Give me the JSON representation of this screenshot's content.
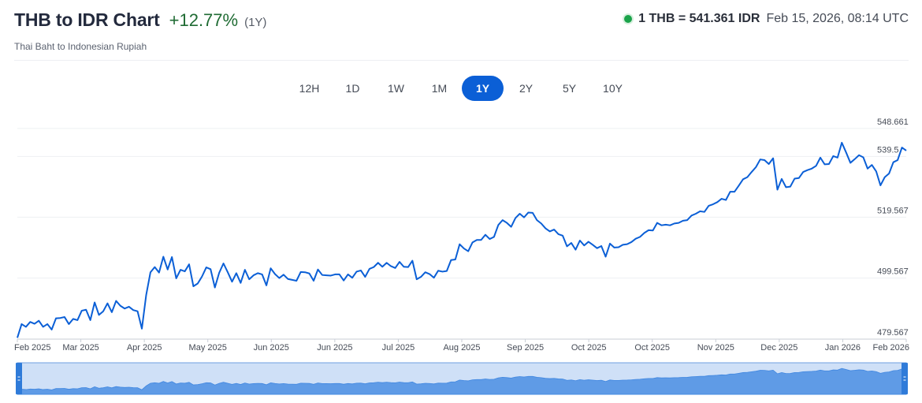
{
  "header": {
    "title": "THB to IDR Chart",
    "change": "+12.77%",
    "period": "(1Y)",
    "subtitle": "Thai Baht to Indonesian Rupiah",
    "rate": "1 THB = 541.361 IDR",
    "timestamp": "Feb 15, 2026, 08:14 UTC"
  },
  "tabs": [
    {
      "label": "12H",
      "active": false
    },
    {
      "label": "1D",
      "active": false
    },
    {
      "label": "1W",
      "active": false
    },
    {
      "label": "1M",
      "active": false
    },
    {
      "label": "1Y",
      "active": true
    },
    {
      "label": "2Y",
      "active": false
    },
    {
      "label": "5Y",
      "active": false
    },
    {
      "label": "10Y",
      "active": false
    }
  ],
  "colors": {
    "line": "#0b5fd6",
    "active_tab": "#0b5fd6",
    "positive": "#1f6b33",
    "navigator_fill": "#5f9be6",
    "navigator_bg": "#cfe0f7",
    "live_dot": "#1aa34a"
  },
  "chart_data": {
    "type": "line",
    "title": "THB to IDR Chart",
    "xlabel": "",
    "ylabel": "",
    "x_ticks": [
      "Feb 2025",
      "Mar 2025",
      "Apr 2025",
      "May 2025",
      "Jun 2025",
      "Jun 2025",
      "Jul 2025",
      "Aug 2025",
      "Sep 2025",
      "Oct 2025",
      "Oct 2025",
      "Nov 2025",
      "Dec 2025",
      "Jan 2026",
      "Feb 2026"
    ],
    "y_ticks": [
      "548.661",
      "539.5",
      "519.567",
      "499.567",
      "479.567"
    ],
    "y_tick_values": [
      548.661,
      539.5,
      519.567,
      499.567,
      479.567
    ],
    "ylim": [
      479.567,
      552
    ],
    "grid": true,
    "legend": "none",
    "series": [
      {
        "values": [
          480.0,
          484.5,
          483.6,
          485.2,
          484.6,
          485.6,
          483.6,
          484.5,
          482.7,
          486.4,
          486.5,
          486.8,
          484.5,
          486.2,
          485.8,
          488.9,
          489.2,
          485.8,
          491.6,
          487.5,
          488.7,
          491.3,
          488.4,
          492.1,
          490.5,
          489.6,
          490.2,
          489.1,
          488.7,
          483.0,
          494.0,
          501.5,
          503.2,
          501.4,
          506.6,
          502.4,
          506.5,
          499.5,
          502.3,
          501.8,
          504.1,
          496.9,
          497.8,
          500.1,
          503.1,
          502.5,
          496.5,
          501.3,
          504.4,
          501.5,
          498.4,
          501.2,
          498.0,
          502.3,
          499.2,
          500.5,
          501.2,
          500.8,
          497.2,
          502.8,
          500.9,
          499.6,
          500.7,
          499.3,
          499.0,
          498.7,
          501.6,
          501.5,
          501.1,
          498.7,
          502.4,
          500.6,
          500.5,
          500.4,
          500.8,
          500.8,
          498.8,
          500.8,
          499.7,
          501.7,
          502.1,
          500.0,
          502.6,
          503.2,
          504.6,
          503.3,
          504.6,
          503.5,
          502.9,
          504.9,
          503.3,
          503.2,
          505.3,
          499.2,
          500.0,
          501.5,
          500.9,
          499.7,
          502.0,
          501.7,
          501.9,
          505.5,
          505.7,
          510.7,
          509.3,
          508.4,
          511.3,
          512.1,
          512.1,
          513.8,
          512.4,
          513.1,
          517.0,
          518.6,
          517.7,
          516.4,
          519.3,
          520.7,
          519.5,
          521.1,
          521.0,
          518.6,
          517.5,
          515.9,
          514.9,
          515.5,
          514.0,
          513.5,
          510.0,
          511.1,
          508.9,
          511.9,
          510.3,
          511.5,
          510.5,
          509.4,
          510.1,
          506.6,
          510.9,
          509.6,
          509.7,
          510.5,
          510.7,
          511.4,
          512.5,
          513.1,
          514.4,
          515.3,
          515.2,
          517.7,
          516.9,
          517.1,
          516.9,
          517.5,
          517.7,
          518.4,
          518.6,
          520.1,
          520.7,
          521.5,
          521.3,
          523.3,
          523.8,
          524.5,
          525.6,
          525.2,
          527.9,
          527.9,
          529.9,
          532.0,
          532.7,
          534.4,
          536.0,
          538.5,
          538.3,
          537.0,
          538.9,
          528.6,
          532.1,
          529.4,
          529.6,
          532.2,
          532.4,
          534.4,
          535.0,
          535.5,
          536.4,
          539.1,
          536.9,
          537.0,
          539.6,
          539.1,
          544.0,
          540.8,
          537.4,
          538.6,
          539.9,
          539.2,
          535.5,
          536.7,
          534.6,
          530.0,
          532.7,
          533.9,
          537.6,
          538.3,
          542.4,
          541.4
        ]
      }
    ]
  }
}
